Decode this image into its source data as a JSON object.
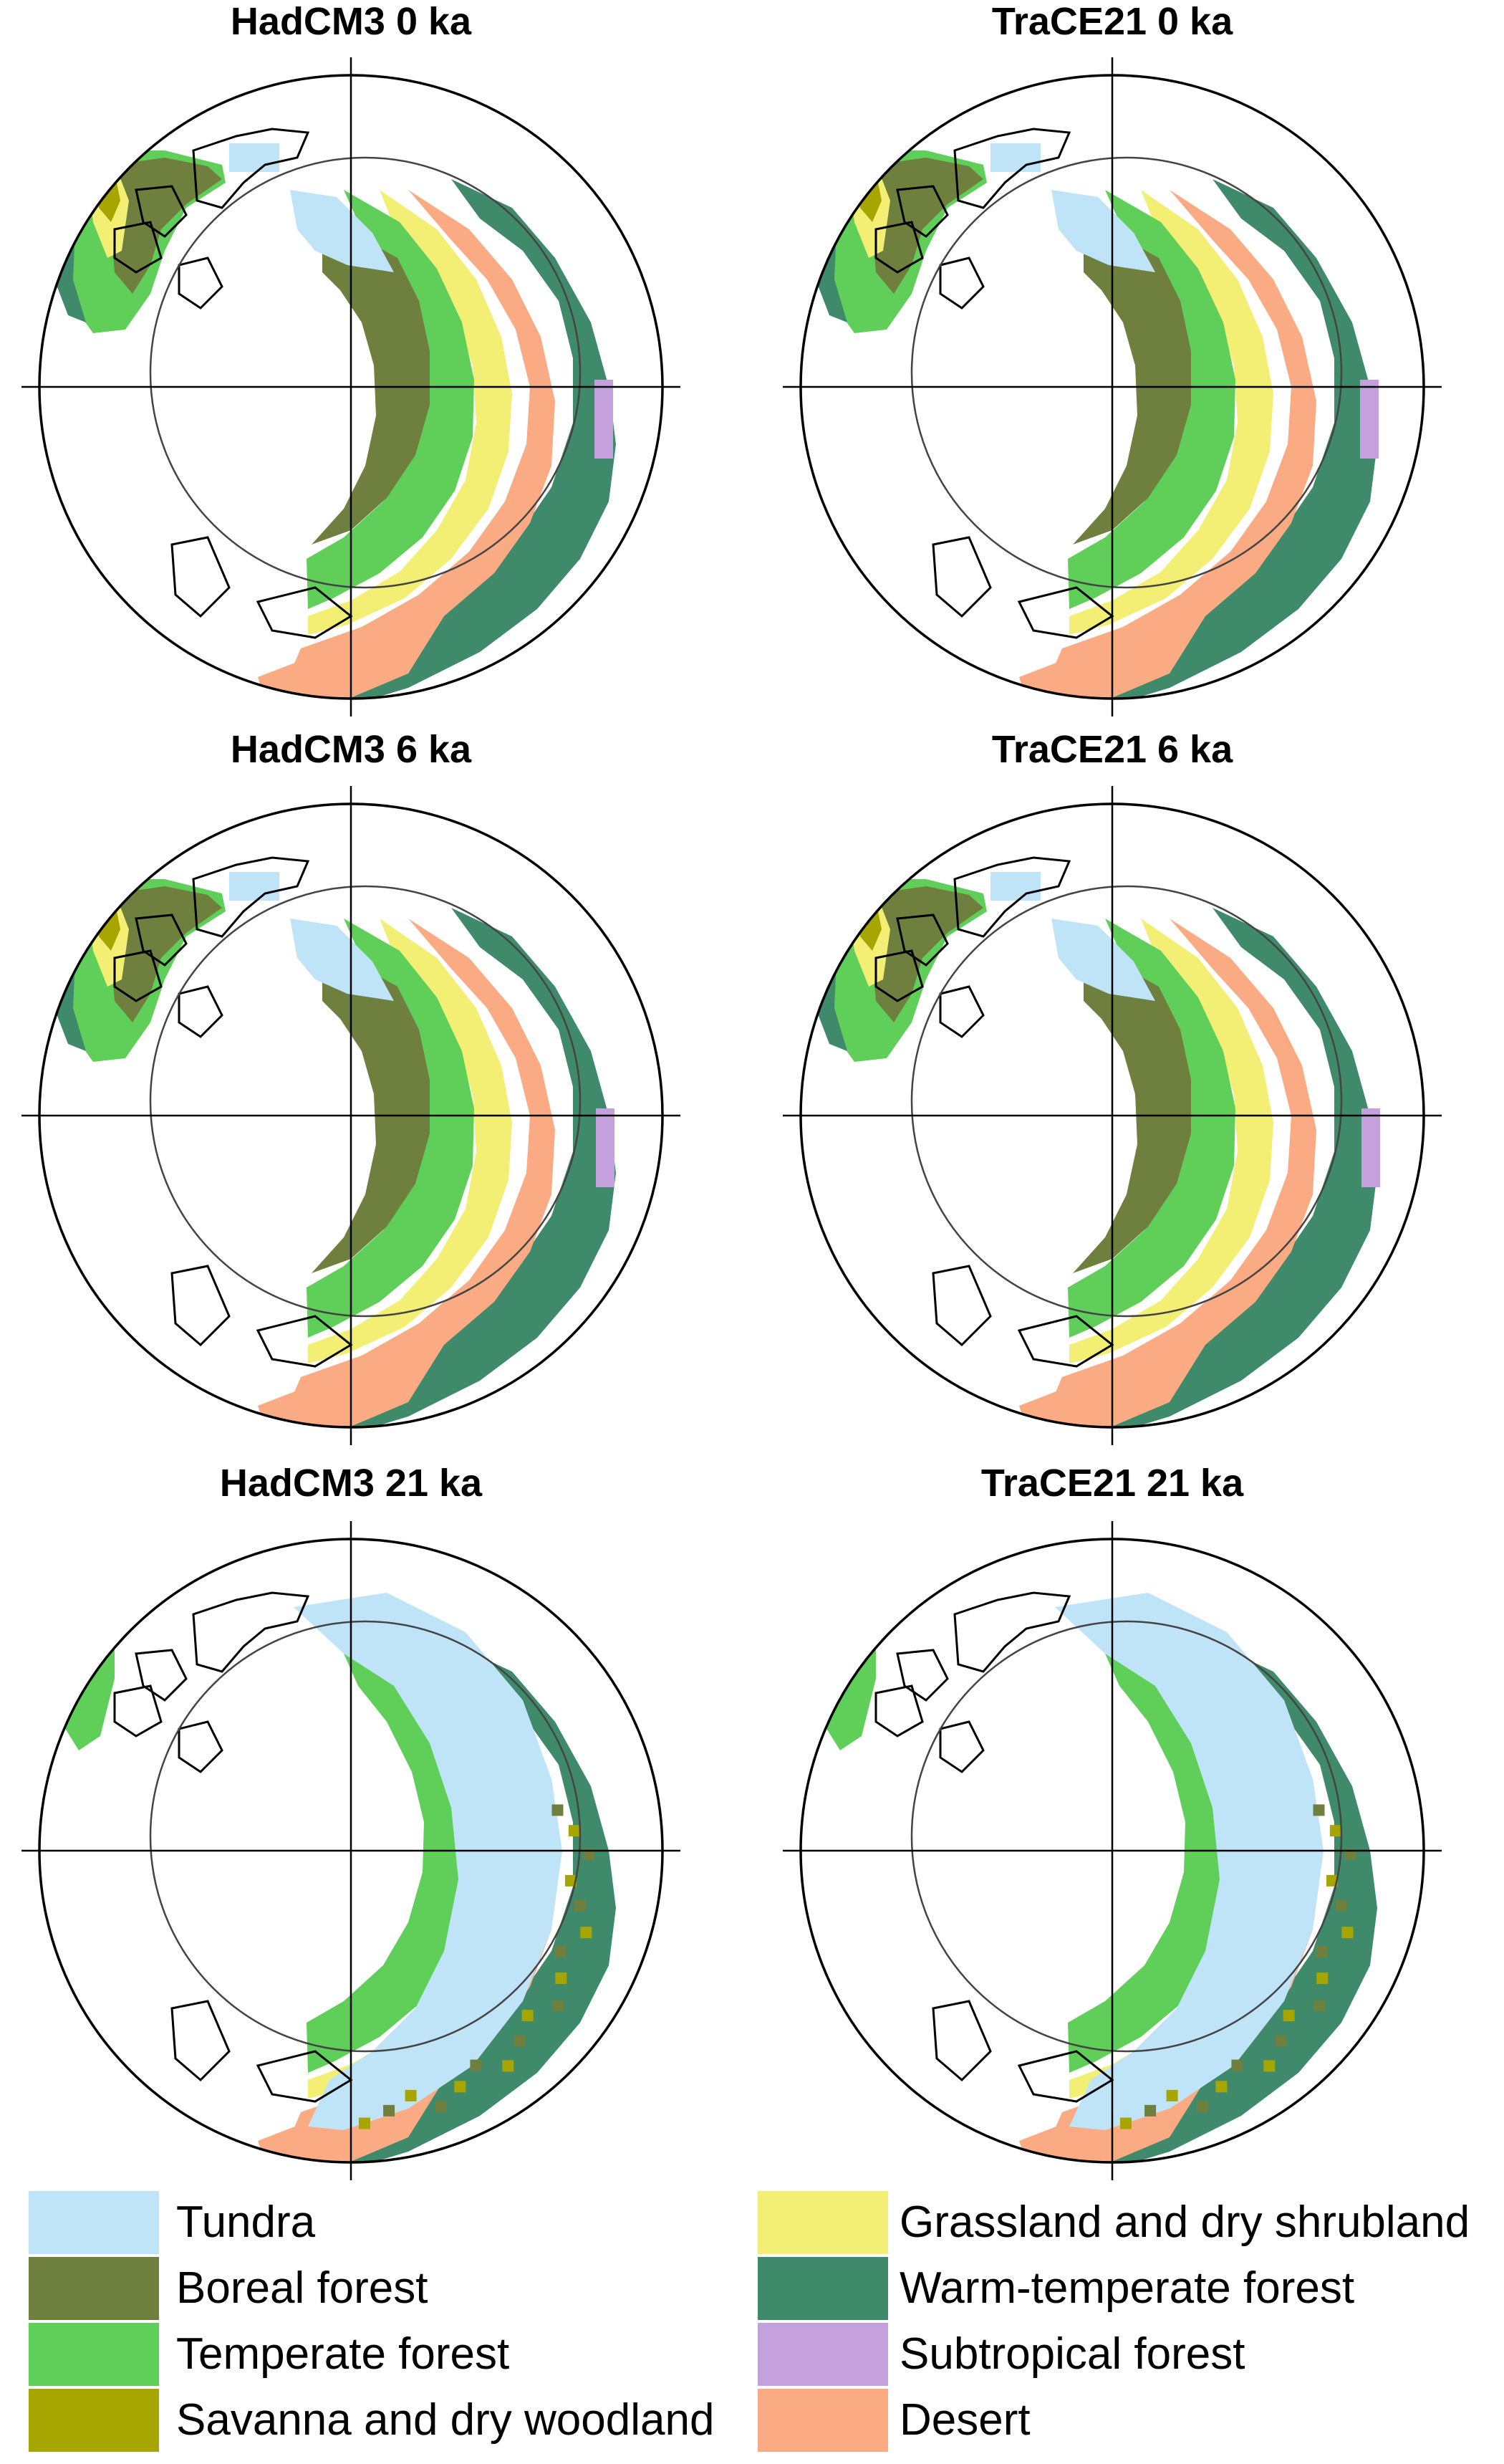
{
  "panels": [
    {
      "title": "HadCM3 0 ka"
    },
    {
      "title": "TraCE21 0 ka"
    },
    {
      "title": "HadCM3 6 ka"
    },
    {
      "title": "TraCE21 6 ka"
    },
    {
      "title": "HadCM3 21 ka"
    },
    {
      "title": "TraCE21 21 ka"
    }
  ],
  "legend": [
    {
      "label": "Tundra",
      "color": "#bfe3f7"
    },
    {
      "label": "Boreal forest",
      "color": "#6e7f3e"
    },
    {
      "label": "Temperate forest",
      "color": "#5fcf5a"
    },
    {
      "label": "Savanna and dry woodland",
      "color": "#a7a600"
    },
    {
      "label": "Grassland and dry shrubland",
      "color": "#f2ef74"
    },
    {
      "label": "Warm-temperate forest",
      "color": "#3f8a6a"
    },
    {
      "label": "Subtropical forest",
      "color": "#c4a0dc"
    },
    {
      "label": "Desert",
      "color": "#fbab84"
    }
  ]
}
